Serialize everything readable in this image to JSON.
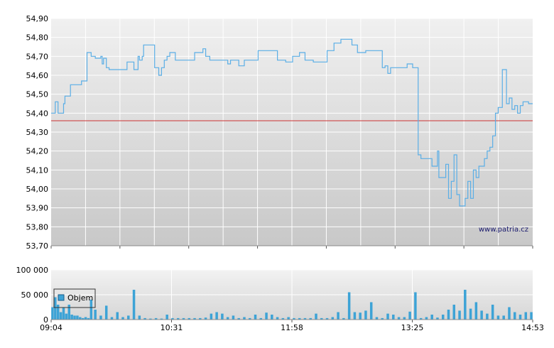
{
  "watermark": "www.patria.cz",
  "colors": {
    "price_line": "#5aaee6",
    "reference_line": "#cc3333",
    "volume_bar": "#3da3d6",
    "grid": "#ffffff",
    "plot_bg_top": "#f0f0f0",
    "plot_bg_bottom": "#c8c8c8"
  },
  "chart_data": [
    {
      "type": "line",
      "name": "price",
      "x_tick_labels": [
        "09:04",
        "10:31",
        "11:58",
        "13:25",
        "14:53"
      ],
      "y_tick_labels": [
        "53,70",
        "53,80",
        "53,90",
        "54,00",
        "54,10",
        "54,20",
        "54,30",
        "54,40",
        "54,50",
        "54,60",
        "54,70",
        "54,80",
        "54,90"
      ],
      "ylim": [
        53.7,
        54.9
      ],
      "xlim_minutes": [
        0,
        349
      ],
      "reference_line": 54.36,
      "grid": true,
      "x": [
        0,
        2,
        3,
        5,
        7,
        9,
        10,
        12,
        14,
        20,
        22,
        26,
        28,
        29,
        32,
        36,
        37,
        38,
        40,
        41,
        42,
        47,
        50,
        55,
        60,
        63,
        64,
        66,
        67,
        70,
        72,
        75,
        78,
        80,
        82,
        84,
        86,
        89,
        90,
        93,
        95,
        98,
        100,
        104,
        110,
        112,
        115,
        120,
        128,
        130,
        134,
        136,
        140,
        144,
        150,
        155,
        160,
        164,
        166,
        170,
        175,
        180,
        184,
        190,
        196,
        200,
        205,
        210,
        214,
        218,
        222,
        228,
        236,
        240,
        242,
        244,
        246,
        248,
        254,
        258,
        262,
        266,
        268,
        276,
        280,
        281,
        286,
        288,
        290,
        292,
        294,
        296,
        298,
        300,
        302,
        304,
        306,
        308,
        310,
        312,
        314,
        316,
        318,
        320,
        322,
        324,
        327,
        330,
        332,
        334,
        336,
        338,
        340,
        342,
        346,
        349
      ],
      "y": [
        54.4,
        54.4,
        54.46,
        54.4,
        54.4,
        54.45,
        54.49,
        54.49,
        54.55,
        54.55,
        54.57,
        54.72,
        54.72,
        54.7,
        54.69,
        54.7,
        54.66,
        54.69,
        54.64,
        54.64,
        54.63,
        54.63,
        54.63,
        54.67,
        54.63,
        54.7,
        54.68,
        54.7,
        54.76,
        54.76,
        54.76,
        54.64,
        54.6,
        54.64,
        54.68,
        54.7,
        54.72,
        54.72,
        54.68,
        54.68,
        54.68,
        54.68,
        54.68,
        54.72,
        54.74,
        54.7,
        54.68,
        54.68,
        54.66,
        54.68,
        54.68,
        54.65,
        54.68,
        54.68,
        54.73,
        54.73,
        54.73,
        54.68,
        54.68,
        54.67,
        54.7,
        54.72,
        54.68,
        54.67,
        54.67,
        54.73,
        54.77,
        54.79,
        54.79,
        54.76,
        54.72,
        54.73,
        54.73,
        54.64,
        54.65,
        54.61,
        54.64,
        54.64,
        54.64,
        54.66,
        54.64,
        54.18,
        54.16,
        54.12,
        54.2,
        54.06,
        54.13,
        53.95,
        54.04,
        54.18,
        53.97,
        53.91,
        53.91,
        53.95,
        54.04,
        53.95,
        54.1,
        54.06,
        54.12,
        54.12,
        54.16,
        54.2,
        54.22,
        54.28,
        54.4,
        54.43,
        54.63,
        54.45,
        54.48,
        54.42,
        54.44,
        54.4,
        54.44,
        54.46,
        54.45,
        54.45
      ]
    },
    {
      "type": "bar",
      "name": "Objem",
      "legend_label": "Objem",
      "legend_position": "top-left",
      "x_tick_labels": [
        "09:04",
        "10:31",
        "11:58",
        "13:25",
        "14:53"
      ],
      "y_tick_labels": [
        "0",
        "50 000",
        "100 000"
      ],
      "ylim": [
        0,
        100000
      ],
      "xlim_minutes": [
        0,
        349
      ],
      "x": [
        1,
        3,
        5,
        7,
        9,
        11,
        13,
        15,
        17,
        19,
        21,
        23,
        25,
        27,
        29,
        32,
        36,
        40,
        44,
        48,
        52,
        56,
        60,
        64,
        68,
        72,
        76,
        80,
        84,
        88,
        92,
        96,
        100,
        104,
        108,
        112,
        116,
        120,
        124,
        128,
        132,
        136,
        140,
        144,
        148,
        152,
        156,
        160,
        164,
        168,
        172,
        176,
        180,
        184,
        188,
        192,
        196,
        200,
        204,
        208,
        212,
        216,
        220,
        224,
        228,
        232,
        236,
        240,
        244,
        248,
        252,
        256,
        260,
        264,
        268,
        272,
        276,
        280,
        284,
        288,
        292,
        296,
        300,
        304,
        308,
        312,
        316,
        320,
        324,
        328,
        332,
        336,
        340,
        344,
        348
      ],
      "values": [
        25000,
        45000,
        30000,
        15000,
        25000,
        12000,
        30000,
        10000,
        8000,
        8000,
        5000,
        3000,
        5000,
        3000,
        40000,
        20000,
        8000,
        28000,
        5000,
        15000,
        5000,
        8000,
        60000,
        8000,
        3000,
        2000,
        3000,
        2000,
        10000,
        3000,
        3000,
        3000,
        3000,
        3000,
        3000,
        4000,
        12000,
        15000,
        12000,
        5000,
        8000,
        3000,
        5000,
        3000,
        10000,
        3000,
        14000,
        10000,
        5000,
        3000,
        5000,
        3000,
        3000,
        3000,
        3000,
        12000,
        3000,
        3000,
        5000,
        15000,
        3000,
        55000,
        15000,
        14000,
        18000,
        35000,
        5000,
        3000,
        12000,
        10000,
        5000,
        5000,
        16000,
        55000,
        3000,
        5000,
        10000,
        4000,
        10000,
        20000,
        30000,
        18000,
        60000,
        22000,
        35000,
        18000,
        12000,
        30000,
        8000,
        8000,
        25000,
        15000,
        10000,
        15000,
        15000
      ]
    }
  ]
}
